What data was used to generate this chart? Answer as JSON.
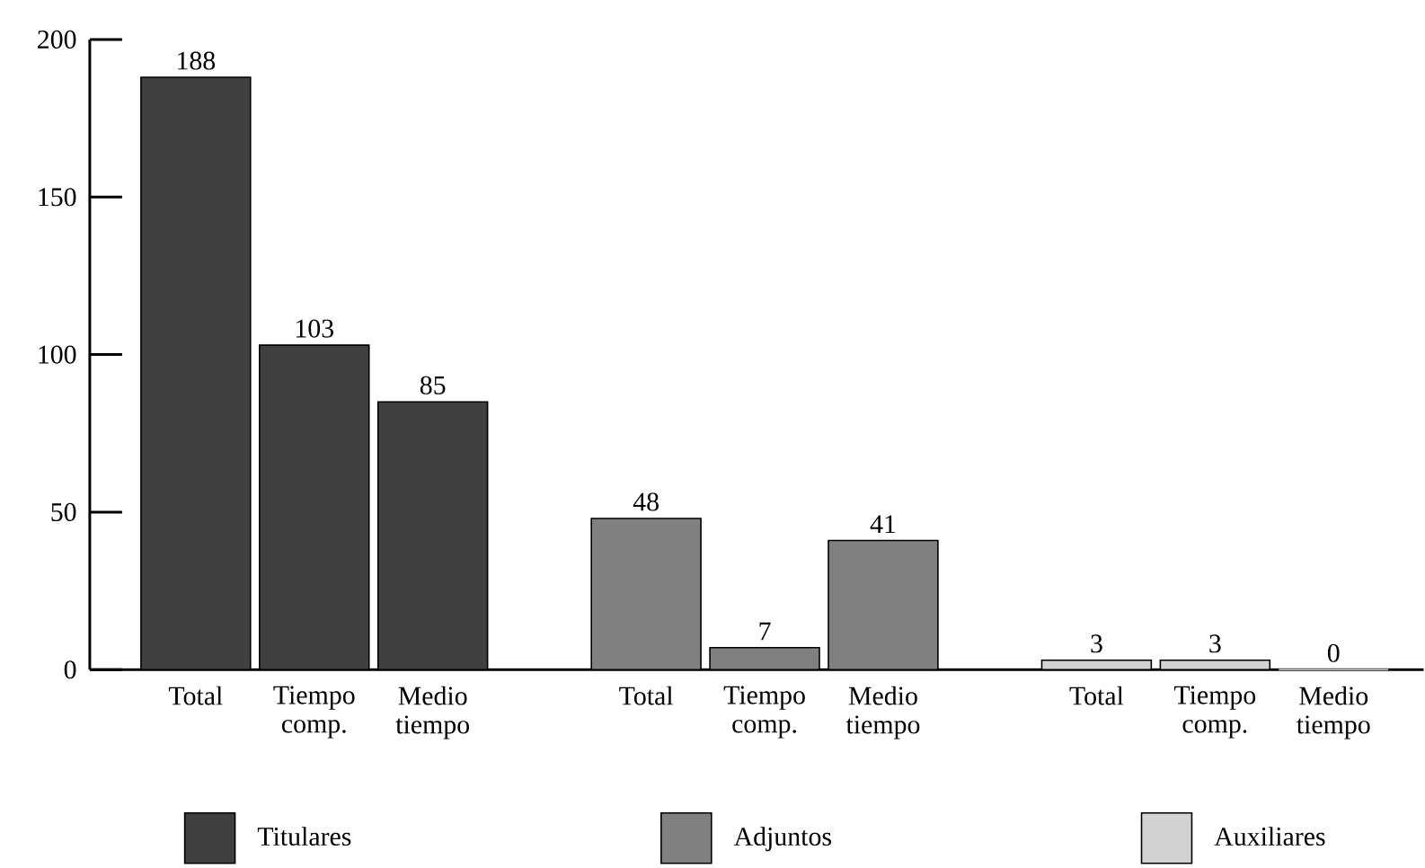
{
  "chart_data": {
    "type": "bar",
    "categories": [
      "Total",
      "Tiempo comp.",
      "Medio tiempo",
      "Total",
      "Tiempo comp.",
      "Medio tiempo",
      "Total",
      "Tiempo comp.",
      "Medio tiempo"
    ],
    "series": [
      {
        "name": "Titulares",
        "color": "#404040",
        "values": [
          188,
          103,
          85,
          null,
          null,
          null,
          null,
          null,
          null
        ]
      },
      {
        "name": "Adjuntos",
        "color": "#808080",
        "values": [
          null,
          null,
          null,
          48,
          7,
          41,
          null,
          null,
          null
        ]
      },
      {
        "name": "Auxiliares",
        "color": "#d3d3d3",
        "values": [
          null,
          null,
          null,
          null,
          null,
          null,
          3,
          3,
          0
        ]
      }
    ],
    "ylim": [
      0,
      200
    ],
    "yticks": [
      0,
      50,
      100,
      150,
      200
    ],
    "data_labels": true,
    "grid": false,
    "legend": "bottom"
  }
}
